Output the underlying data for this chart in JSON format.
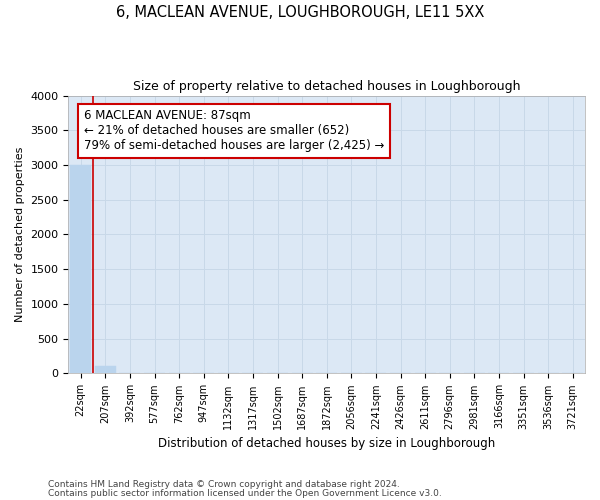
{
  "title": "6, MACLEAN AVENUE, LOUGHBOROUGH, LE11 5XX",
  "subtitle": "Size of property relative to detached houses in Loughborough",
  "xlabel": "Distribution of detached houses by size in Loughborough",
  "ylabel": "Number of detached properties",
  "categories": [
    "22sqm",
    "207sqm",
    "392sqm",
    "577sqm",
    "762sqm",
    "947sqm",
    "1132sqm",
    "1317sqm",
    "1502sqm",
    "1687sqm",
    "1872sqm",
    "2056sqm",
    "2241sqm",
    "2426sqm",
    "2611sqm",
    "2796sqm",
    "2981sqm",
    "3166sqm",
    "3351sqm",
    "3536sqm",
    "3721sqm"
  ],
  "values": [
    3000,
    110,
    0,
    0,
    0,
    0,
    0,
    0,
    0,
    0,
    0,
    0,
    0,
    0,
    0,
    0,
    0,
    0,
    0,
    0,
    0
  ],
  "bar_color": "#bad4ed",
  "bar_edge_color": "#bad4ed",
  "ylim": [
    0,
    4000
  ],
  "yticks": [
    0,
    500,
    1000,
    1500,
    2000,
    2500,
    3000,
    3500,
    4000
  ],
  "vline_x": 0.5,
  "vline_color": "#cc0000",
  "annotation_text": "6 MACLEAN AVENUE: 87sqm\n← 21% of detached houses are smaller (652)\n79% of semi-detached houses are larger (2,425) →",
  "annotation_box_color": "#cc0000",
  "footnote1": "Contains HM Land Registry data © Crown copyright and database right 2024.",
  "footnote2": "Contains public sector information licensed under the Open Government Licence v3.0.",
  "grid_color": "#c8d8e8",
  "bg_color": "#dce8f5",
  "fig_bg_color": "#ffffff"
}
